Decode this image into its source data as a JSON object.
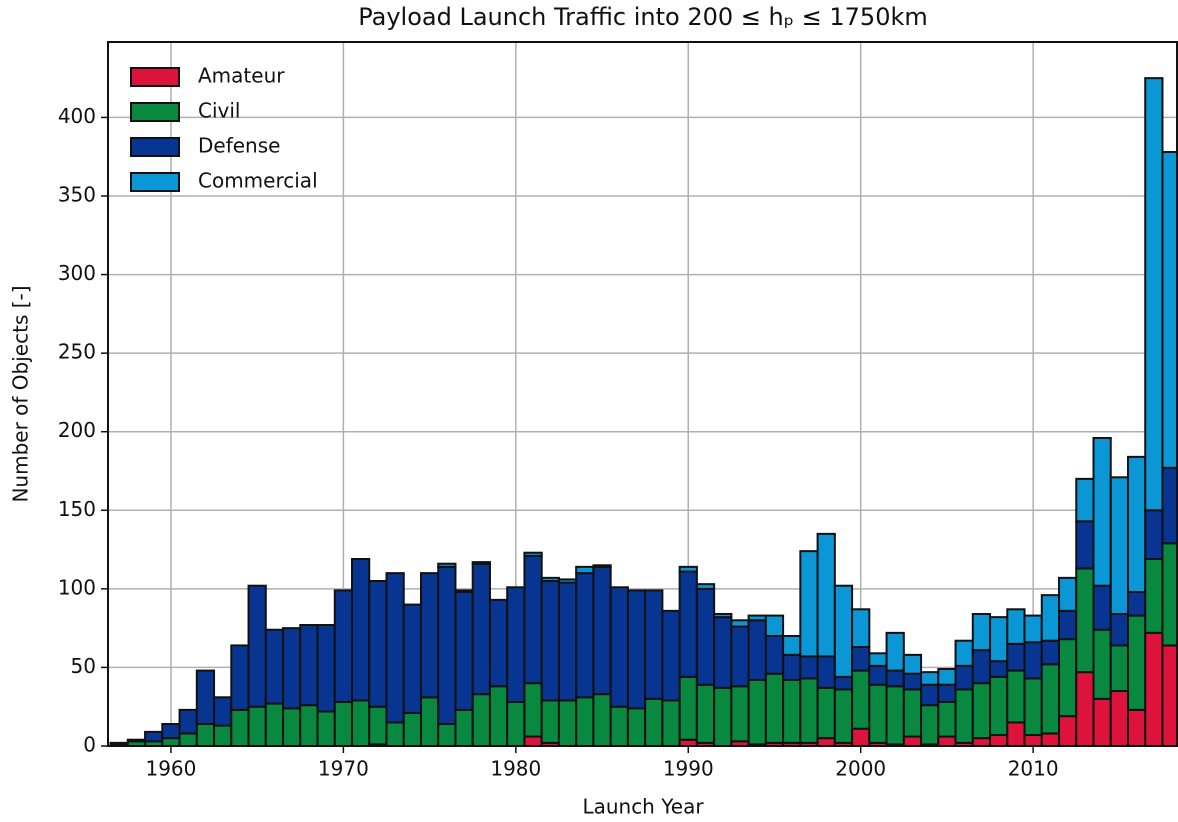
{
  "chart_data": {
    "type": "stacked_bar",
    "title": "Payload Launch Traffic into 200 ≤ hₚ ≤ 1750km",
    "x_label": "Launch Year",
    "y_label": "Number of Objects [-]",
    "x": [
      1957,
      1958,
      1959,
      1960,
      1961,
      1962,
      1963,
      1964,
      1965,
      1966,
      1967,
      1968,
      1969,
      1970,
      1971,
      1972,
      1973,
      1974,
      1975,
      1976,
      1977,
      1978,
      1979,
      1980,
      1981,
      1982,
      1983,
      1984,
      1985,
      1986,
      1987,
      1988,
      1989,
      1990,
      1991,
      1992,
      1993,
      1994,
      1995,
      1996,
      1997,
      1998,
      1999,
      2000,
      2001,
      2002,
      2003,
      2004,
      2005,
      2006,
      2007,
      2008,
      2009,
      2010,
      2011,
      2012,
      2013,
      2014,
      2015,
      2016,
      2017,
      2018
    ],
    "series": [
      {
        "name": "Amateur",
        "color": "#dc143c",
        "values": [
          0,
          0,
          0,
          0,
          0,
          0,
          0,
          0,
          0,
          0,
          0,
          0,
          0,
          0,
          0,
          1,
          0,
          0,
          0,
          0,
          0,
          0,
          0,
          0,
          6,
          2,
          0,
          0,
          0,
          0,
          0,
          0,
          0,
          4,
          2,
          0,
          3,
          1,
          2,
          2,
          2,
          5,
          2,
          11,
          2,
          1,
          6,
          1,
          6,
          2,
          5,
          7,
          15,
          7,
          8,
          19,
          47,
          30,
          35,
          23,
          72,
          64
        ]
      },
      {
        "name": "Civil",
        "color": "#08893f",
        "values": [
          1,
          3,
          3,
          5,
          8,
          14,
          13,
          23,
          25,
          27,
          24,
          26,
          22,
          28,
          29,
          24,
          15,
          21,
          31,
          14,
          23,
          33,
          38,
          28,
          34,
          27,
          29,
          31,
          33,
          25,
          24,
          30,
          29,
          40,
          37,
          37,
          35,
          41,
          44,
          40,
          41,
          32,
          34,
          37,
          37,
          37,
          30,
          25,
          22,
          34,
          35,
          37,
          33,
          36,
          44,
          49,
          66,
          44,
          29,
          60,
          47,
          65
        ]
      },
      {
        "name": "Defense",
        "color": "#083591",
        "values": [
          1,
          1,
          6,
          9,
          15,
          34,
          18,
          41,
          77,
          47,
          51,
          51,
          55,
          71,
          90,
          80,
          95,
          69,
          79,
          100,
          75,
          83,
          55,
          73,
          81,
          76,
          75,
          79,
          81,
          76,
          75,
          69,
          57,
          67,
          61,
          45,
          38,
          38,
          24,
          16,
          14,
          20,
          8,
          15,
          12,
          10,
          10,
          13,
          11,
          15,
          21,
          10,
          17,
          23,
          15,
          18,
          30,
          28,
          20,
          15,
          31,
          48
        ]
      },
      {
        "name": "Commercial",
        "color": "#0b97d6",
        "values": [
          0,
          0,
          0,
          0,
          0,
          0,
          0,
          0,
          0,
          0,
          0,
          0,
          0,
          0,
          0,
          0,
          0,
          0,
          0,
          2,
          1,
          1,
          0,
          0,
          2,
          2,
          2,
          4,
          1,
          0,
          0,
          0,
          0,
          3,
          3,
          2,
          4,
          3,
          13,
          12,
          67,
          78,
          58,
          24,
          8,
          24,
          12,
          8,
          10,
          16,
          23,
          28,
          22,
          17,
          29,
          21,
          27,
          94,
          87,
          86,
          275,
          201
        ]
      }
    ],
    "xlim": [
      1956.35,
      2018.4
    ],
    "xticks": [
      1960,
      1970,
      1980,
      1990,
      2000,
      2010
    ],
    "ylim": [
      0,
      448
    ],
    "yticks": [
      0,
      50,
      100,
      150,
      200,
      250,
      300,
      350,
      400
    ],
    "grid": true,
    "legend": "upper left"
  }
}
